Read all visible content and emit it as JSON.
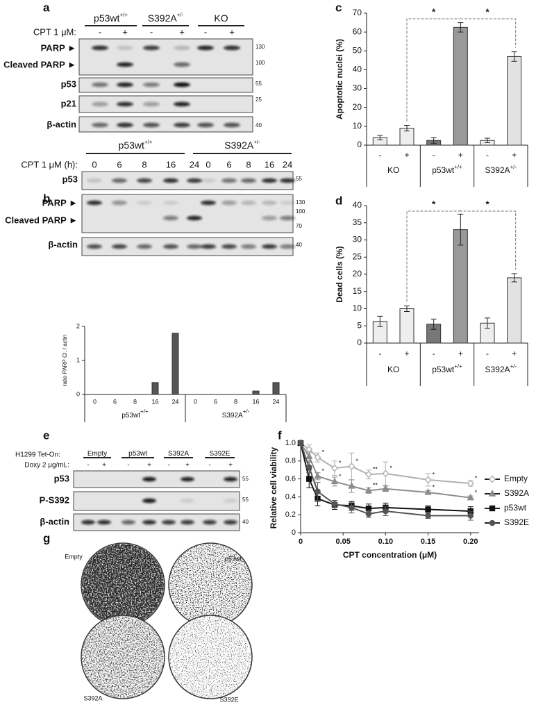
{
  "blot_a": {
    "panel": "a",
    "groups": [
      {
        "name": "p53wt",
        "superscript": "+/+"
      },
      {
        "name": "S392A",
        "superscript": "+/-"
      },
      {
        "name": "KO"
      }
    ],
    "treatment_label": "CPT 1 μM:",
    "lanes": [
      "-",
      "+",
      "-",
      "+",
      "-",
      "+"
    ],
    "rows": [
      {
        "labels": [
          "PARP ►",
          "Cleaved PARP ►"
        ],
        "markers": [
          "130",
          "100"
        ]
      },
      {
        "labels": [
          "p53"
        ],
        "markers": [
          "55"
        ]
      },
      {
        "labels": [
          "p21"
        ],
        "markers": [
          "25"
        ]
      },
      {
        "labels": [
          "β-actin"
        ],
        "markers": [
          "40"
        ]
      }
    ]
  },
  "blot_b": {
    "panel": "b",
    "groups": [
      {
        "name": "p53wt",
        "superscript": "+/+"
      },
      {
        "name": "S392A",
        "superscript": "+/-"
      }
    ],
    "treatment_label": "CPT 1 μM (h):",
    "lanes": [
      "0",
      "6",
      "8",
      "16",
      "24",
      "0",
      "6",
      "8",
      "16",
      "24"
    ],
    "rows": [
      {
        "labels": [
          "p53"
        ],
        "markers": [
          "55"
        ]
      },
      {
        "labels": [
          "PARP ►",
          "Cleaved PARP ►"
        ],
        "markers": [
          "130",
          "100",
          "70"
        ]
      },
      {
        "labels": [
          "β-actin"
        ],
        "markers": [
          "40"
        ]
      }
    ]
  },
  "blot_e": {
    "panel": "e",
    "cell_line": "H1299 Tet-On:",
    "groups": [
      {
        "name": "Empty"
      },
      {
        "name": "p53wt"
      },
      {
        "name": "S392A"
      },
      {
        "name": "S392E"
      }
    ],
    "treatment_label": "Doxy 2 μg/mL:",
    "lanes": [
      "-",
      "+",
      "-",
      "+",
      "-",
      "+",
      "-",
      "+"
    ],
    "rows": [
      {
        "labels": [
          "p53"
        ],
        "markers": [
          "55"
        ]
      },
      {
        "labels": [
          "P-S392"
        ],
        "markers": [
          "55"
        ]
      },
      {
        "labels": [
          "β-actin"
        ],
        "markers": [
          "40"
        ]
      }
    ]
  },
  "colonies": {
    "panel": "g",
    "labels": [
      "Empty",
      "p53wt",
      "S392A",
      "S392E"
    ]
  },
  "chart_data": [
    {
      "type": "bar",
      "panel": "c",
      "y_label": "Apoptotic nuclei (%)",
      "categories": [
        "-",
        "+",
        "-",
        "+",
        "-",
        "+"
      ],
      "groups": [
        {
          "name": "KO"
        },
        {
          "name": "p53wt",
          "superscript": "+/+"
        },
        {
          "name": "S392A",
          "superscript": "+/-"
        }
      ],
      "values": [
        4,
        9,
        2.5,
        62.5,
        2.5,
        47
      ],
      "errors": [
        1.2,
        1.5,
        1.5,
        2.5,
        1.2,
        2.5
      ],
      "bar_colors": [
        "#eeeeee",
        "#eeeeee",
        "#777777",
        "#999999",
        "#eeeeee",
        "#e2e2e2"
      ],
      "ylim": [
        0,
        70
      ],
      "yticks": [
        0,
        10,
        20,
        30,
        40,
        50,
        60,
        70
      ],
      "significance": [
        "*",
        "*"
      ]
    },
    {
      "type": "bar",
      "panel": "d",
      "y_label": "Dead cells (%)",
      "categories": [
        "-",
        "+",
        "-",
        "+",
        "-",
        "+"
      ],
      "groups": [
        {
          "name": "KO"
        },
        {
          "name": "p53wt",
          "superscript": "+/+"
        },
        {
          "name": "S392A",
          "superscript": "+/-"
        }
      ],
      "values": [
        6.3,
        10,
        5.5,
        33,
        5.8,
        19
      ],
      "errors": [
        1.5,
        0.8,
        1.5,
        4.5,
        1.5,
        1.2
      ],
      "bar_colors": [
        "#eeeeee",
        "#eeeeee",
        "#777777",
        "#999999",
        "#eeeeee",
        "#e2e2e2"
      ],
      "ylim": [
        0,
        40
      ],
      "yticks": [
        0,
        5,
        10,
        15,
        20,
        25,
        30,
        35,
        40
      ],
      "significance": [
        "*",
        "*"
      ]
    },
    {
      "type": "bar",
      "y_label": "ratio PARP Cl. / actin",
      "categories": [
        "0",
        "6",
        "8",
        "16",
        "24",
        "0",
        "6",
        "8",
        "16",
        "24"
      ],
      "groups": [
        {
          "name": "p53wt",
          "superscript": "+/+"
        },
        {
          "name": "S392A",
          "superscript": "+/-"
        }
      ],
      "values": [
        0,
        0,
        0,
        0.35,
        1.8,
        0,
        0,
        0,
        0.1,
        0.35
      ],
      "color": "#555555",
      "ylim": [
        0,
        2
      ],
      "yticks": [
        0,
        1,
        2
      ]
    },
    {
      "type": "line",
      "panel": "f",
      "x_label": "CPT concentration (μM)",
      "y_label": "Relative cell viability",
      "x": [
        0,
        0.01,
        0.02,
        0.04,
        0.06,
        0.08,
        0.1,
        0.15,
        0.2
      ],
      "xlim": [
        0,
        0.21
      ],
      "xticks": [
        0,
        0.05,
        {
          "value": 0.1,
          "label": "0.10"
        },
        0.15,
        {
          "value": 0.2,
          "label": "0.20"
        }
      ],
      "ylim": [
        0,
        1
      ],
      "yticks": [
        0,
        0.2,
        0.4,
        0.6,
        0.8,
        {
          "value": 1,
          "label": "1.0"
        }
      ],
      "legend": "right",
      "series": [
        {
          "name": "Empty",
          "color": "#b0b0b0",
          "marker": "diamond",
          "values": [
            1,
            0.93,
            0.84,
            0.72,
            0.74,
            0.65,
            0.66,
            0.59,
            0.55
          ],
          "errors": [
            0,
            0.05,
            0.05,
            0.08,
            0.15,
            0.05,
            0.13,
            0.07,
            0.03
          ],
          "annotations": [
            null,
            null,
            "*",
            "*",
            "*",
            "**",
            "*",
            "*",
            "*"
          ]
        },
        {
          "name": "S392A",
          "color": "#8c8c8c",
          "marker": "triangle",
          "values": [
            1,
            0.85,
            0.63,
            0.57,
            0.52,
            0.47,
            0.49,
            0.45,
            0.39
          ],
          "errors": [
            0,
            0.05,
            0.04,
            0.05,
            0.07,
            0.03,
            0.03,
            0.02,
            0.02
          ],
          "annotations": [
            null,
            null,
            "*",
            "*",
            null,
            "**",
            null,
            "*",
            "*"
          ]
        },
        {
          "name": "p53wt",
          "color": "#111111",
          "marker": "square",
          "values": [
            1,
            0.6,
            0.38,
            0.31,
            0.3,
            0.27,
            0.28,
            0.26,
            0.24
          ],
          "errors": [
            0,
            0.1,
            0.08,
            0.05,
            0.05,
            0.05,
            0.05,
            0.04,
            0.05
          ]
        },
        {
          "name": "S392E",
          "color": "#555555",
          "marker": "circle",
          "values": [
            1,
            0.73,
            0.46,
            0.32,
            0.28,
            0.21,
            0.24,
            0.19,
            0.19
          ],
          "errors": [
            0,
            0.06,
            0.1,
            0.04,
            0.06,
            0.04,
            0.05,
            0.03,
            0.05
          ]
        }
      ]
    }
  ]
}
